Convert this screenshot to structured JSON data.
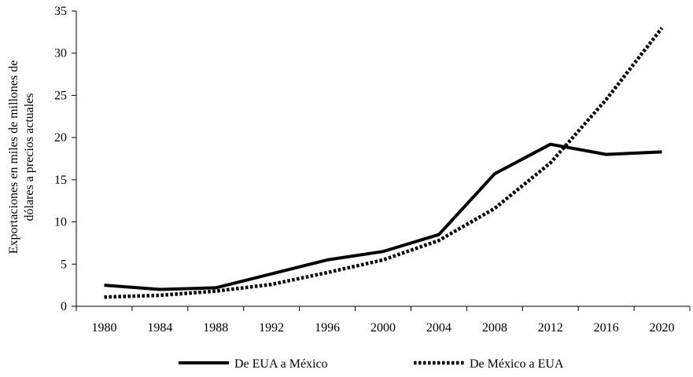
{
  "chart_data": {
    "type": "line",
    "title": "",
    "xlabel": "",
    "ylabel_lines": [
      "Exportaciones en miles de  millones de",
      "dólares a precios actuales"
    ],
    "xlim": [
      1980,
      2021
    ],
    "ylim": [
      0,
      35
    ],
    "x_ticks": [
      1980,
      1984,
      1988,
      1992,
      1996,
      2000,
      2004,
      2008,
      2012,
      2016,
      2020
    ],
    "y_ticks": [
      0,
      5,
      10,
      15,
      20,
      25,
      30,
      35
    ],
    "grid": false,
    "legend_position": "bottom",
    "series": [
      {
        "name": "De EUA a México",
        "style": "solid",
        "color": "#000000",
        "points": [
          [
            1980,
            2.5
          ],
          [
            1984,
            2.0
          ],
          [
            1988,
            2.2
          ],
          [
            1996,
            5.5
          ],
          [
            2000,
            6.5
          ],
          [
            2004,
            8.5
          ],
          [
            2008,
            15.7
          ],
          [
            2012,
            19.2
          ],
          [
            2016,
            18.0
          ],
          [
            2020,
            18.3
          ]
        ]
      },
      {
        "name": "De México a EUA",
        "style": "dotted",
        "color": "#000000",
        "points": [
          [
            1980,
            1.1
          ],
          [
            1984,
            1.3
          ],
          [
            1988,
            1.8
          ],
          [
            1992,
            2.6
          ],
          [
            1996,
            4.0
          ],
          [
            2000,
            5.5
          ],
          [
            2004,
            7.8
          ],
          [
            2008,
            11.6
          ],
          [
            2012,
            17.0
          ],
          [
            2016,
            24.5
          ],
          [
            2020,
            33.0
          ]
        ]
      }
    ]
  }
}
